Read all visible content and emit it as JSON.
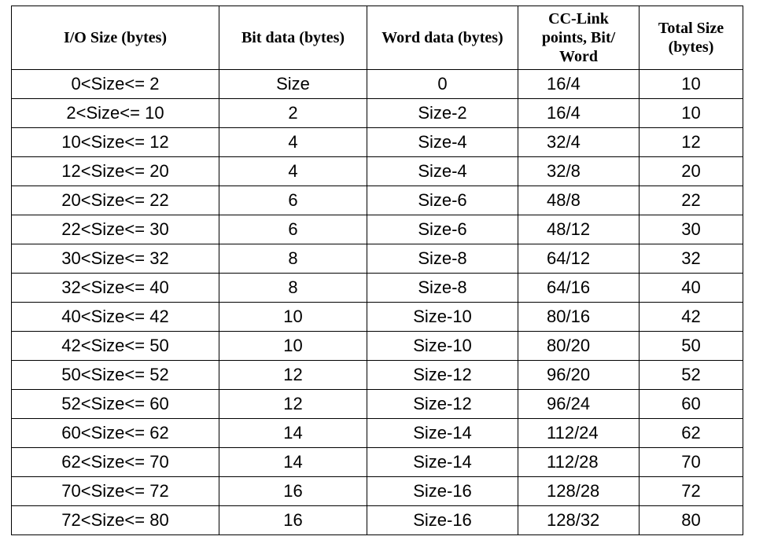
{
  "table": {
    "header": [
      "I/O Size (bytes)",
      "Bit data (bytes)",
      "Word data (bytes)",
      "CC-Link points, Bit/ Word",
      "Total Size (bytes)"
    ],
    "rows": [
      [
        "0<Size<= 2",
        "Size",
        0,
        "16/4",
        10
      ],
      [
        "2<Size<= 10",
        2,
        "Size-2",
        "16/4",
        10
      ],
      [
        "10<Size<= 12",
        4,
        "Size-4",
        "32/4",
        12
      ],
      [
        "12<Size<= 20",
        4,
        "Size-4",
        "32/8",
        20
      ],
      [
        "20<Size<= 22",
        6,
        "Size-6",
        "48/8",
        22
      ],
      [
        "22<Size<= 30",
        6,
        "Size-6",
        "48/12",
        30
      ],
      [
        "30<Size<= 32",
        8,
        "Size-8",
        "64/12",
        32
      ],
      [
        "32<Size<= 40",
        8,
        "Size-8",
        "64/16",
        40
      ],
      [
        "40<Size<= 42",
        10,
        "Size-10",
        "80/16",
        42
      ],
      [
        "42<Size<= 50",
        10,
        "Size-10",
        "80/20",
        50
      ],
      [
        "50<Size<= 52",
        12,
        "Size-12",
        "96/20",
        52
      ],
      [
        "52<Size<= 60",
        12,
        "Size-12",
        "96/24",
        60
      ],
      [
        "60<Size<= 62",
        14,
        "Size-14",
        "112/24",
        62
      ],
      [
        "62<Size<= 70",
        14,
        "Size-14",
        "112/28",
        70
      ],
      [
        "70<Size<= 72",
        16,
        "Size-16",
        "128/28",
        72
      ],
      [
        "72<Size<= 80",
        16,
        "Size-16",
        "128/32",
        80
      ]
    ]
  }
}
